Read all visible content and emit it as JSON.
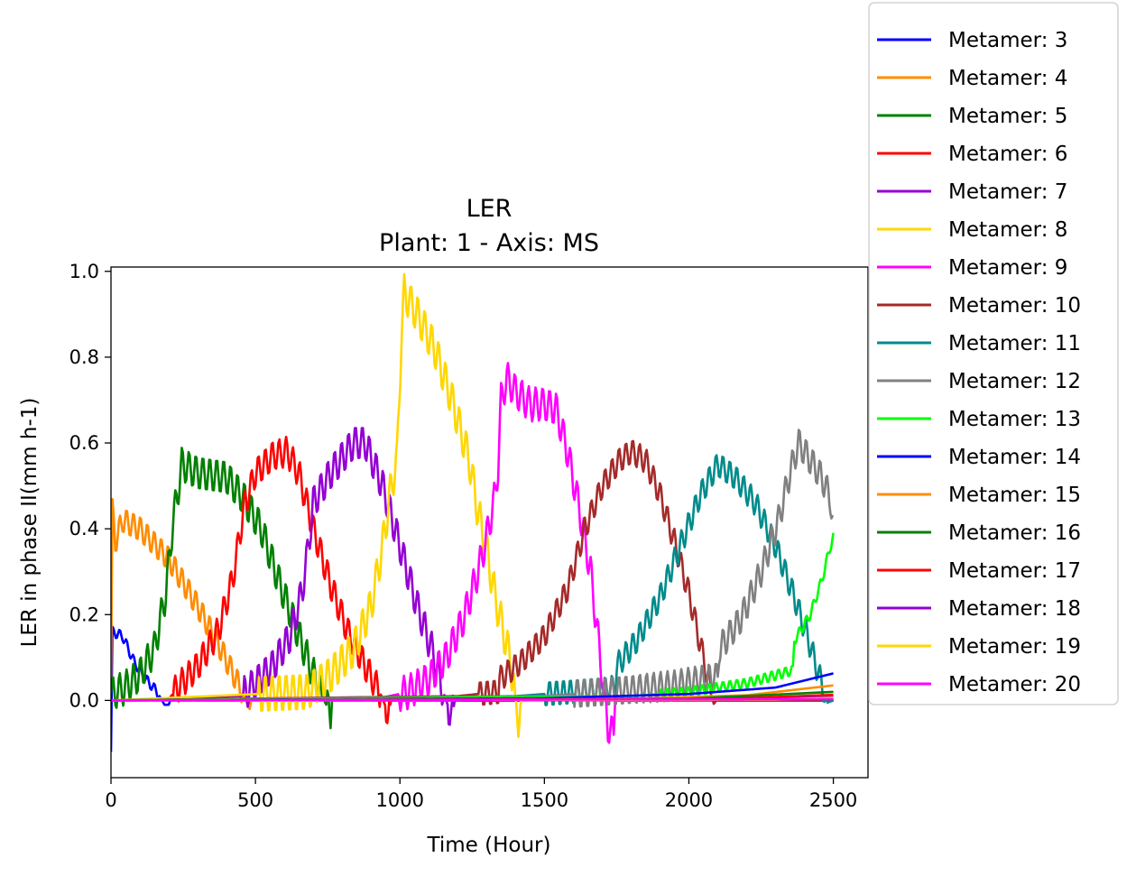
{
  "chart_data": {
    "type": "line",
    "title": "LER",
    "subtitle": "Plant: 1 - Axis: MS",
    "xlabel": "Time (Hour)",
    "ylabel": "LER in phase II(mm h-1)",
    "xlim": [
      0,
      2620
    ],
    "ylim": [
      -0.18,
      1.01
    ],
    "xticks": [
      0,
      500,
      1000,
      1500,
      2000,
      2500
    ],
    "xtick_labels": [
      "0",
      "500",
      "1000",
      "1500",
      "2000",
      "2500"
    ],
    "yticks": [
      0.0,
      0.2,
      0.4,
      0.6,
      0.8,
      1.0
    ],
    "ytick_labels": [
      "0.0",
      "0.2",
      "0.4",
      "0.6",
      "0.8",
      "1.0"
    ],
    "grid": false,
    "legend_position": "outside-top-right",
    "series": [
      {
        "name": "Metamer: 3",
        "color": "#0000ff",
        "oscillation": 0.012,
        "points": [
          [
            0,
            -0.12
          ],
          [
            5,
            0.16
          ],
          [
            40,
            0.15
          ],
          [
            80,
            0.09
          ],
          [
            120,
            0.05
          ],
          [
            160,
            0.02
          ],
          [
            185,
            -0.01
          ],
          [
            200,
            -0.01
          ],
          [
            205,
            0.0
          ],
          [
            2500,
            0.0
          ]
        ]
      },
      {
        "name": "Metamer: 4",
        "color": "#ff8c00",
        "oscillation": 0.03,
        "points": [
          [
            0,
            0.02
          ],
          [
            5,
            0.44
          ],
          [
            15,
            0.37
          ],
          [
            40,
            0.42
          ],
          [
            100,
            0.4
          ],
          [
            200,
            0.33
          ],
          [
            300,
            0.22
          ],
          [
            380,
            0.12
          ],
          [
            440,
            0.04
          ],
          [
            480,
            -0.02
          ],
          [
            485,
            0.0
          ],
          [
            2500,
            0.0
          ]
        ]
      },
      {
        "name": "Metamer: 5",
        "color": "#008000",
        "oscillation": 0.04,
        "points": [
          [
            0,
            0.015
          ],
          [
            50,
            0.03
          ],
          [
            100,
            0.06
          ],
          [
            150,
            0.12
          ],
          [
            190,
            0.25
          ],
          [
            215,
            0.42
          ],
          [
            230,
            0.48
          ],
          [
            245,
            0.55
          ],
          [
            300,
            0.53
          ],
          [
            400,
            0.52
          ],
          [
            460,
            0.47
          ],
          [
            520,
            0.4
          ],
          [
            580,
            0.28
          ],
          [
            640,
            0.17
          ],
          [
            690,
            0.08
          ],
          [
            730,
            0.01
          ],
          [
            760,
            -0.03
          ],
          [
            765,
            0.0
          ],
          [
            2500,
            0.0
          ]
        ]
      },
      {
        "name": "Metamer: 6",
        "color": "#ff0000",
        "oscillation": 0.035,
        "points": [
          [
            0,
            0.0
          ],
          [
            200,
            0.003
          ],
          [
            230,
            0.03
          ],
          [
            300,
            0.08
          ],
          [
            370,
            0.16
          ],
          [
            420,
            0.28
          ],
          [
            440,
            0.36
          ],
          [
            460,
            0.45
          ],
          [
            500,
            0.53
          ],
          [
            560,
            0.57
          ],
          [
            610,
            0.58
          ],
          [
            650,
            0.53
          ],
          [
            700,
            0.4
          ],
          [
            760,
            0.27
          ],
          [
            820,
            0.16
          ],
          [
            880,
            0.08
          ],
          [
            930,
            0.02
          ],
          [
            960,
            -0.03
          ],
          [
            970,
            0.0
          ],
          [
            2500,
            0.0
          ]
        ]
      },
      {
        "name": "Metamer: 7",
        "color": "#9400d3",
        "oscillation": 0.04,
        "points": [
          [
            0,
            0.0
          ],
          [
            450,
            0.01
          ],
          [
            500,
            0.04
          ],
          [
            560,
            0.08
          ],
          [
            620,
            0.15
          ],
          [
            660,
            0.25
          ],
          [
            680,
            0.34
          ],
          [
            700,
            0.46
          ],
          [
            760,
            0.53
          ],
          [
            840,
            0.6
          ],
          [
            880,
            0.6
          ],
          [
            940,
            0.5
          ],
          [
            1000,
            0.36
          ],
          [
            1060,
            0.22
          ],
          [
            1110,
            0.12
          ],
          [
            1150,
            0.02
          ],
          [
            1180,
            -0.04
          ],
          [
            1190,
            0.0
          ],
          [
            2500,
            0.0
          ]
        ]
      },
      {
        "name": "Metamer: 8",
        "color": "#ffd700",
        "oscillation": 0.045,
        "points": [
          [
            0,
            0.0
          ],
          [
            680,
            0.02
          ],
          [
            760,
            0.06
          ],
          [
            840,
            0.12
          ],
          [
            900,
            0.22
          ],
          [
            940,
            0.36
          ],
          [
            970,
            0.5
          ],
          [
            990,
            0.56
          ],
          [
            1005,
            0.85
          ],
          [
            1015,
            0.95
          ],
          [
            1060,
            0.9
          ],
          [
            1120,
            0.82
          ],
          [
            1180,
            0.7
          ],
          [
            1240,
            0.56
          ],
          [
            1270,
            0.44
          ],
          [
            1300,
            0.35
          ],
          [
            1330,
            0.24
          ],
          [
            1380,
            0.1
          ],
          [
            1410,
            -0.04
          ],
          [
            1420,
            0.0
          ],
          [
            2500,
            0.0
          ]
        ]
      },
      {
        "name": "Metamer: 9",
        "color": "#ff00ff",
        "oscillation": 0.04,
        "points": [
          [
            0,
            0.0
          ],
          [
            950,
            0.008
          ],
          [
            1030,
            0.02
          ],
          [
            1100,
            0.05
          ],
          [
            1160,
            0.1
          ],
          [
            1220,
            0.19
          ],
          [
            1270,
            0.3
          ],
          [
            1300,
            0.38
          ],
          [
            1330,
            0.48
          ],
          [
            1340,
            0.55
          ],
          [
            1350,
            0.7
          ],
          [
            1370,
            0.75
          ],
          [
            1400,
            0.72
          ],
          [
            1450,
            0.69
          ],
          [
            1500,
            0.69
          ],
          [
            1540,
            0.68
          ],
          [
            1580,
            0.58
          ],
          [
            1620,
            0.45
          ],
          [
            1660,
            0.3
          ],
          [
            1690,
            0.12
          ],
          [
            1720,
            -0.06
          ],
          [
            1740,
            -0.08
          ],
          [
            1745,
            0.0
          ],
          [
            2500,
            0.0
          ]
        ]
      },
      {
        "name": "Metamer: 10",
        "color": "#a52a2a",
        "oscillation": 0.03,
        "points": [
          [
            0,
            0.0
          ],
          [
            1200,
            0.01
          ],
          [
            1340,
            0.02
          ],
          [
            1345,
            0.05
          ],
          [
            1420,
            0.09
          ],
          [
            1500,
            0.15
          ],
          [
            1580,
            0.26
          ],
          [
            1640,
            0.4
          ],
          [
            1700,
            0.5
          ],
          [
            1760,
            0.56
          ],
          [
            1800,
            0.58
          ],
          [
            1850,
            0.56
          ],
          [
            1900,
            0.48
          ],
          [
            1950,
            0.37
          ],
          [
            2000,
            0.25
          ],
          [
            2040,
            0.13
          ],
          [
            2070,
            0.04
          ],
          [
            2090,
            -0.02
          ],
          [
            2095,
            0.0
          ],
          [
            2500,
            0.0
          ]
        ]
      },
      {
        "name": "Metamer: 11",
        "color": "#008b8b",
        "oscillation": 0.03,
        "points": [
          [
            0,
            0.0
          ],
          [
            1400,
            0.01
          ],
          [
            1700,
            0.025
          ],
          [
            1745,
            0.03
          ],
          [
            1750,
            0.08
          ],
          [
            1820,
            0.14
          ],
          [
            1900,
            0.24
          ],
          [
            1970,
            0.36
          ],
          [
            2040,
            0.48
          ],
          [
            2100,
            0.55
          ],
          [
            2160,
            0.52
          ],
          [
            2230,
            0.46
          ],
          [
            2300,
            0.36
          ],
          [
            2360,
            0.25
          ],
          [
            2410,
            0.15
          ],
          [
            2450,
            0.06
          ],
          [
            2480,
            -0.005
          ],
          [
            2500,
            0.0
          ]
        ]
      },
      {
        "name": "Metamer: 12",
        "color": "#808080",
        "oscillation": 0.035,
        "points": [
          [
            0,
            0.0
          ],
          [
            1500,
            0.01
          ],
          [
            1800,
            0.025
          ],
          [
            1950,
            0.035
          ],
          [
            2100,
            0.055
          ],
          [
            2105,
            0.12
          ],
          [
            2180,
            0.19
          ],
          [
            2250,
            0.3
          ],
          [
            2310,
            0.42
          ],
          [
            2350,
            0.53
          ],
          [
            2380,
            0.6
          ],
          [
            2420,
            0.56
          ],
          [
            2460,
            0.52
          ],
          [
            2490,
            0.47
          ],
          [
            2500,
            0.4
          ]
        ]
      },
      {
        "name": "Metamer: 13",
        "color": "#00ff00",
        "oscillation": 0.012,
        "points": [
          [
            0,
            0.0
          ],
          [
            1800,
            0.01
          ],
          [
            2000,
            0.02
          ],
          [
            2200,
            0.04
          ],
          [
            2360,
            0.07
          ],
          [
            2365,
            0.14
          ],
          [
            2420,
            0.2
          ],
          [
            2460,
            0.28
          ],
          [
            2490,
            0.36
          ],
          [
            2500,
            0.38
          ]
        ]
      },
      {
        "name": "Metamer: 14",
        "color": "#0000ff",
        "oscillation": 0.0,
        "points": [
          [
            0,
            0.0
          ],
          [
            1500,
            0.005
          ],
          [
            2000,
            0.015
          ],
          [
            2300,
            0.03
          ],
          [
            2500,
            0.063
          ]
        ]
      },
      {
        "name": "Metamer: 15",
        "color": "#ff8c00",
        "oscillation": 0.0,
        "points": [
          [
            0,
            0.0
          ],
          [
            1800,
            0.004
          ],
          [
            2200,
            0.012
          ],
          [
            2500,
            0.035
          ]
        ]
      },
      {
        "name": "Metamer: 16",
        "color": "#008000",
        "oscillation": 0.0,
        "points": [
          [
            0,
            0.0
          ],
          [
            2000,
            0.004
          ],
          [
            2500,
            0.02
          ]
        ]
      },
      {
        "name": "Metamer: 17",
        "color": "#ff0000",
        "oscillation": 0.0,
        "points": [
          [
            0,
            0.0
          ],
          [
            2100,
            0.003
          ],
          [
            2500,
            0.013
          ]
        ]
      },
      {
        "name": "Metamer: 18",
        "color": "#9400d3",
        "oscillation": 0.0,
        "points": [
          [
            0,
            0.0
          ],
          [
            2200,
            0.002
          ],
          [
            2500,
            0.008
          ]
        ]
      },
      {
        "name": "Metamer: 19",
        "color": "#ffd700",
        "oscillation": 0.0,
        "points": [
          [
            0,
            0.0
          ],
          [
            2300,
            0.002
          ],
          [
            2500,
            0.006
          ]
        ]
      },
      {
        "name": "Metamer: 20",
        "color": "#ff00ff",
        "oscillation": 0.0,
        "points": [
          [
            0,
            0.0
          ],
          [
            2500,
            0.003
          ]
        ]
      }
    ]
  }
}
